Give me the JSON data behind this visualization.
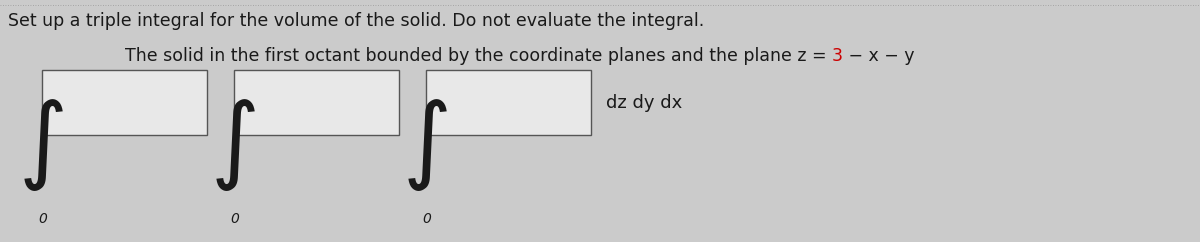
{
  "title_line": "Set up a triple integral for the volume of the solid. Do not evaluate the integral.",
  "part1": "The solid in the first octant bounded by the coordinate planes and the plane z = ",
  "part2": "3",
  "part3": " − x − y",
  "integral_label": "dz dy dx",
  "lower_bound": "0",
  "bg_color": "#cbcbcb",
  "box_facecolor": "#e8e8e8",
  "box_edgecolor": "#555555",
  "text_color": "#1a1a1a",
  "red_color": "#cc0000",
  "title_fontsize": 12.5,
  "desc_fontsize": 12.5,
  "label_fontsize": 13,
  "integral_fontsize": 48,
  "sub_fontsize": 10
}
